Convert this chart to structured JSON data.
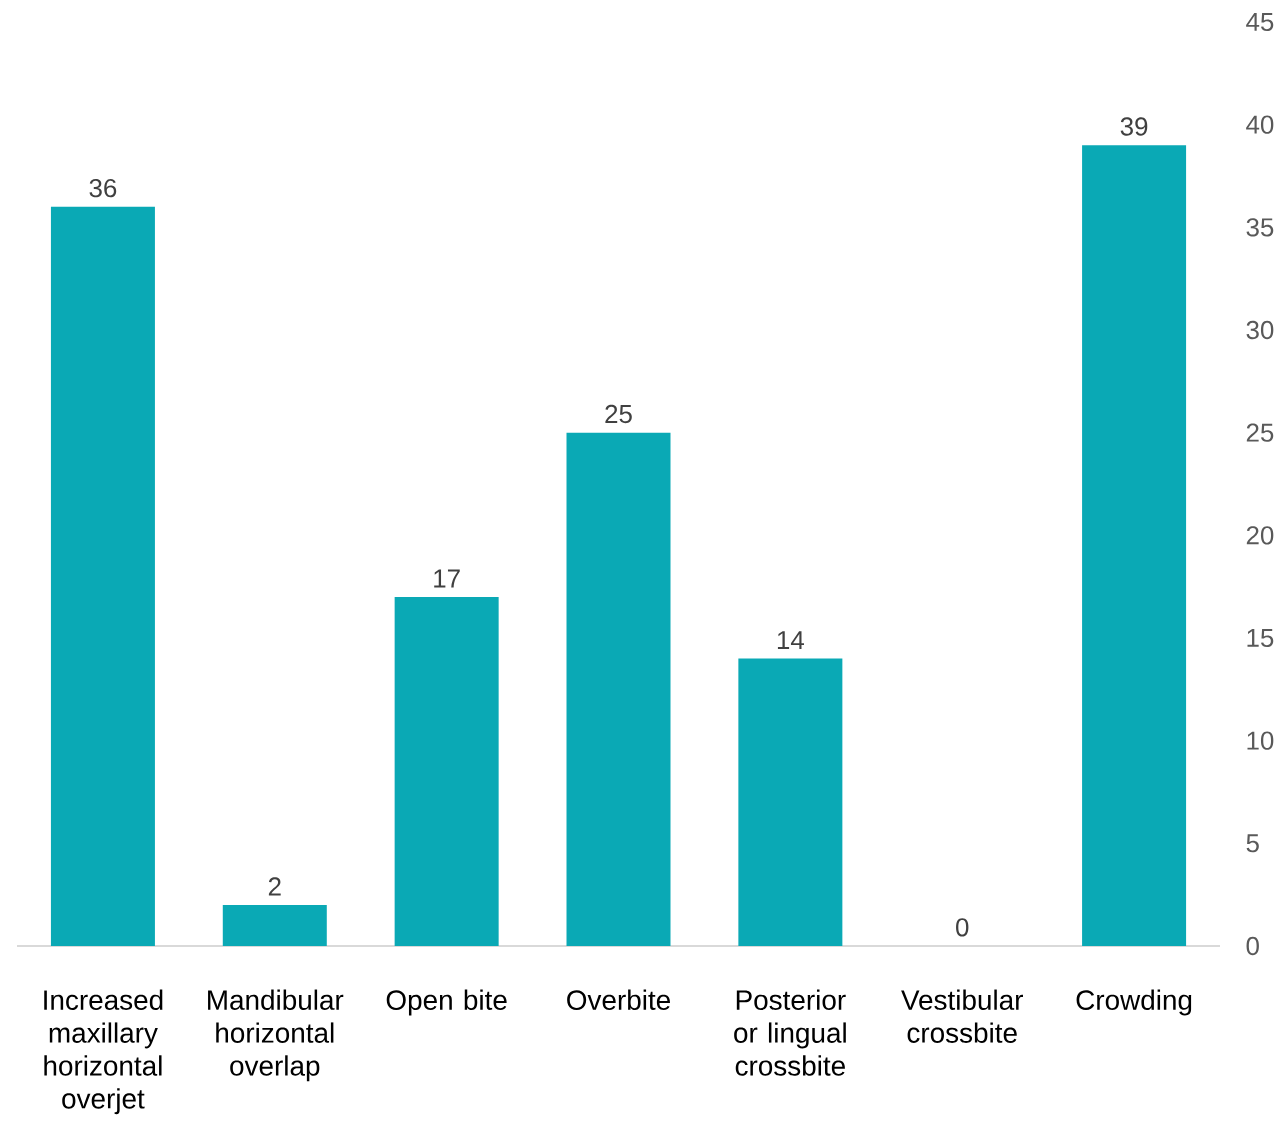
{
  "chart_data": {
    "type": "bar",
    "categories": [
      "Increased maxillary horizontal overjet",
      "Mandibular horizontal overlap",
      "Open bite",
      "Overbite",
      "Posterior or lingual crossbite",
      "Vestibular crossbite",
      "Crowding"
    ],
    "values": [
      36,
      2,
      17,
      25,
      14,
      0,
      39
    ],
    "color": "#0aa9b5",
    "ylim": [
      0,
      45
    ],
    "yticks": [
      0,
      5,
      10,
      15,
      20,
      25,
      30,
      35,
      40,
      45
    ],
    "data_labels": true
  }
}
